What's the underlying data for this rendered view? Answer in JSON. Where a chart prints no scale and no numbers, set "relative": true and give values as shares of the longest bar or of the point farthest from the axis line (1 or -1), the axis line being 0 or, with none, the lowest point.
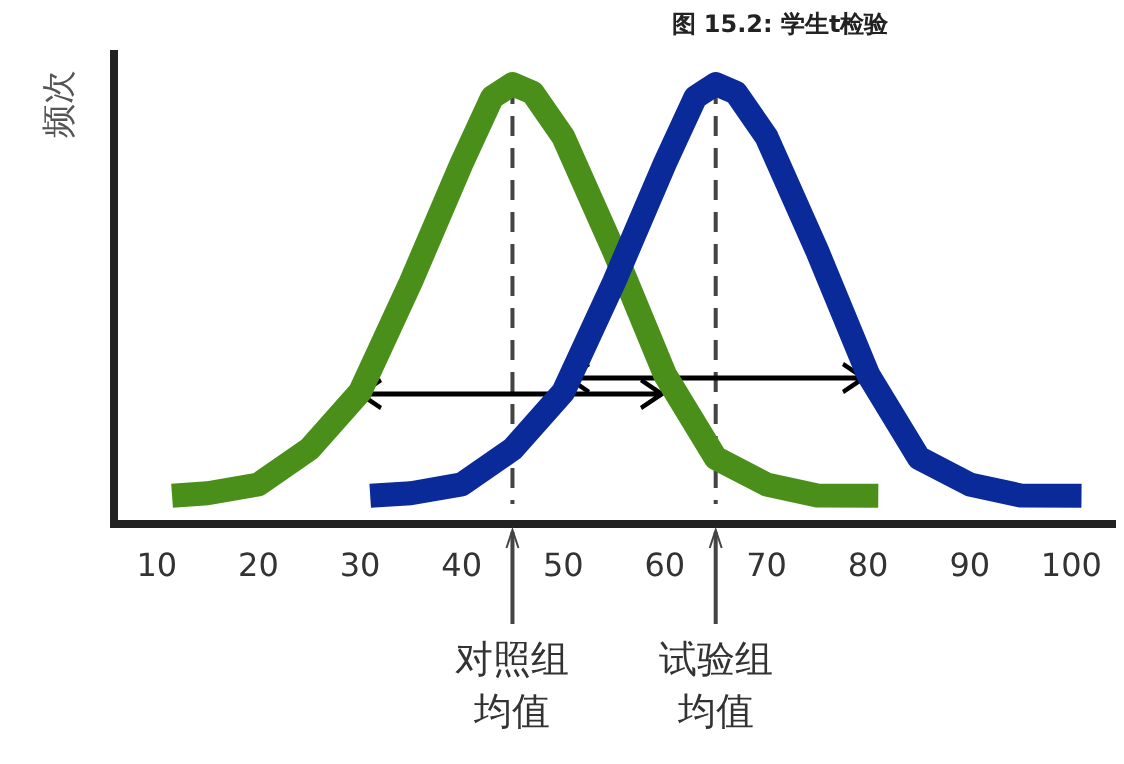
{
  "chart_data": {
    "type": "line",
    "title": "图 15.2: 学生t检验",
    "ylabel": "频次",
    "relative": true,
    "xlim": [
      5,
      104
    ],
    "xticks": [
      10,
      20,
      30,
      40,
      50,
      60,
      70,
      80,
      90,
      100
    ],
    "tick_labels": "x",
    "grid": false,
    "marker": "none",
    "line_style": "solid",
    "series": [
      {
        "color": "#4a8f1a",
        "x": [
          11.5,
          15,
          20,
          25,
          30,
          35,
          40,
          43,
          45,
          47,
          50,
          55,
          60,
          65,
          70,
          75,
          81
        ],
        "values": [
          0.064,
          0.07,
          0.09,
          0.17,
          0.3,
          0.55,
          0.82,
          0.97,
          1,
          0.98,
          0.88,
          0.62,
          0.34,
          0.15,
          0.09,
          0.065,
          0.064
        ]
      },
      {
        "color": "#0b2a9a",
        "x": [
          31,
          35,
          40,
          45,
          50,
          55,
          60,
          63,
          65,
          67,
          70,
          75,
          80,
          85,
          90,
          95,
          101
        ],
        "values": [
          0.064,
          0.07,
          0.09,
          0.17,
          0.3,
          0.55,
          0.82,
          0.97,
          1,
          0.98,
          0.88,
          0.62,
          0.34,
          0.15,
          0.09,
          0.065,
          0.064
        ]
      }
    ],
    "ref_lines": [
      {
        "axis": "x",
        "value": 45,
        "label": "对照组均值",
        "color": "#444444",
        "line_style": "dashed"
      },
      {
        "axis": "x",
        "value": 65,
        "label": "试验组均值",
        "color": "#444444",
        "line_style": "dashed"
      }
    ]
  }
}
